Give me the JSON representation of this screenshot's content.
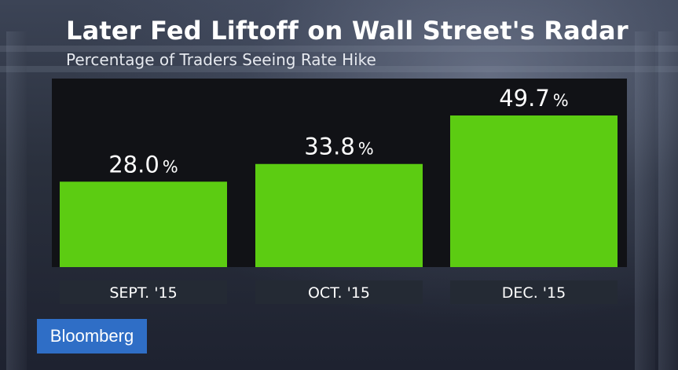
{
  "header": {
    "title": "Later Fed Liftoff on Wall Street's Radar",
    "subtitle": "Percentage of Traders Seeing Rate Hike"
  },
  "brand": {
    "logo_text": "Bloomberg",
    "color": "#2f6ec6"
  },
  "colors": {
    "bar": "#5ccc12",
    "plot_background": "#111216",
    "label_background": "#242a34"
  },
  "chart_data": {
    "type": "bar",
    "title": "Later Fed Liftoff on Wall Street's Radar",
    "subtitle": "Percentage of Traders Seeing Rate Hike",
    "categories": [
      "SEPT. '15",
      "OCT. '15",
      "DEC. '15"
    ],
    "values": [
      28.0,
      33.8,
      49.7
    ],
    "value_labels": [
      "28.0",
      "33.8",
      "49.7"
    ],
    "value_suffix": "%",
    "ylim": [
      0,
      60
    ],
    "grid": false,
    "legend": "none"
  }
}
